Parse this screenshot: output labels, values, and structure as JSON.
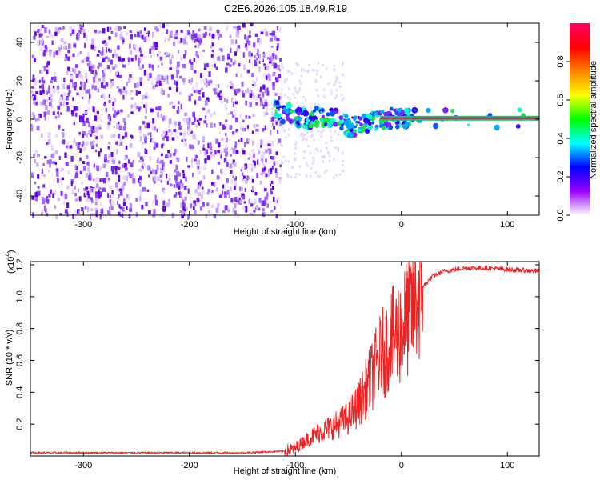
{
  "title": "C2E6.2026.105.18.49.R19",
  "colors": {
    "line": "#ee2222",
    "track": "#dd1155",
    "axis": "#000000"
  },
  "chart_data": [
    {
      "id": "spectrogram",
      "type": "heatmap",
      "xlabel": "Height of straight line (km)",
      "ylabel": "Frequency (Hz)",
      "xlim": [
        -350,
        130
      ],
      "ylim": [
        -50,
        50
      ],
      "xticks": [
        -300,
        -200,
        -100,
        0,
        100
      ],
      "yticks": [
        -40,
        -20,
        0,
        20,
        40
      ],
      "colorbar": {
        "label": "Normalized spectral amplitude",
        "range": [
          0,
          1
        ],
        "ticks": [
          "0.0",
          "0.2",
          "0.4",
          "0.6",
          "0.8"
        ],
        "tick_values": [
          0,
          0.2,
          0.4,
          0.6,
          0.8
        ],
        "colormap": [
          "#ffffff",
          "#9900ff",
          "#0000ff",
          "#00ffff",
          "#00ff00",
          "#ffff00",
          "#ff8000",
          "#ff0000",
          "#ff0066"
        ]
      },
      "noise_region_x": [
        -350,
        -115
      ],
      "signal_track": [
        {
          "x": -120,
          "y": 6
        },
        {
          "x": -110,
          "y": 3
        },
        {
          "x": -100,
          "y": 2
        },
        {
          "x": -90,
          "y": 0
        },
        {
          "x": -80,
          "y": 1
        },
        {
          "x": -70,
          "y": 2
        },
        {
          "x": -60,
          "y": 0
        },
        {
          "x": -50,
          "y": -4
        },
        {
          "x": -40,
          "y": -3
        },
        {
          "x": -30,
          "y": -1
        },
        {
          "x": -20,
          "y": 0
        },
        {
          "x": -10,
          "y": 0.5
        },
        {
          "x": 0,
          "y": 0.5
        },
        {
          "x": 10,
          "y": 0.5
        },
        {
          "x": 130,
          "y": 0.5
        }
      ]
    },
    {
      "id": "snr",
      "type": "line",
      "xlabel": "Height of straight line (km)",
      "ylabel": "SNR (10 * v/v)",
      "exponent_label": "(x10",
      "exponent_power": "4",
      "exponent_close": ")",
      "xlim": [
        -350,
        130
      ],
      "ylim": [
        0,
        1.22
      ],
      "xticks": [
        -300,
        -200,
        -100,
        0,
        100
      ],
      "yticks": [
        0.2,
        0.4,
        0.6,
        0.8,
        1.0,
        1.2
      ],
      "ytick_labels": [
        "0.2",
        "0.4",
        "0.6",
        "0.8",
        "1.0",
        "1.2"
      ],
      "series": [
        {
          "x": [
            -350,
            -300,
            -250,
            -200,
            -150,
            -110,
            -100,
            -90,
            -80,
            -70,
            -60,
            -50,
            -40,
            -30,
            -20,
            -10,
            0,
            10,
            20,
            30,
            40,
            60,
            80,
            100,
            130
          ],
          "values": [
            0.02,
            0.02,
            0.02,
            0.02,
            0.02,
            0.03,
            0.05,
            0.1,
            0.14,
            0.17,
            0.2,
            0.24,
            0.33,
            0.47,
            0.62,
            0.72,
            0.8,
            0.93,
            1.06,
            1.13,
            1.16,
            1.18,
            1.18,
            1.17,
            1.16
          ]
        }
      ]
    }
  ]
}
